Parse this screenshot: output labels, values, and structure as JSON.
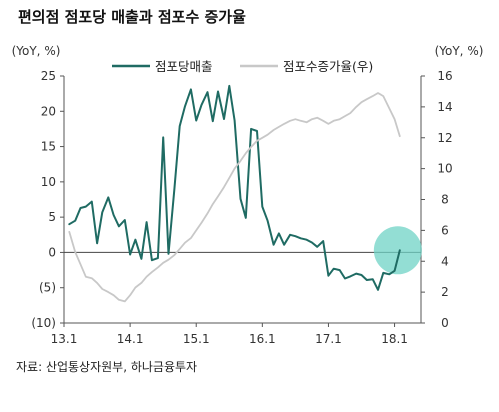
{
  "title": "편의점 점포당 매출과 점포수 증가율",
  "source": "자료: 산업통상자원부, 하나금융투자",
  "colors": {
    "primary": "#1f6b63",
    "secondary": "#c8c8c8",
    "highlight": "#6fd3c6",
    "axis": "#555555",
    "zero_line": "#444444"
  },
  "chart_data": {
    "type": "line",
    "title": "편의점 점포당 매출과 점포수 증가율",
    "x_tick_labels": [
      "13.1",
      "14.1",
      "15.1",
      "16.1",
      "17.1",
      "18.1"
    ],
    "y_left": {
      "unit_label": "(YoY, %)",
      "ylim": [
        -10,
        25
      ],
      "ticks": [
        "(10)",
        "(5)",
        "0",
        "5",
        "10",
        "15",
        "20",
        "25"
      ]
    },
    "y_right": {
      "unit_label": "(YoY, %)",
      "ylim": [
        0,
        16
      ],
      "ticks": [
        "0",
        "2",
        "4",
        "6",
        "8",
        "10",
        "12",
        "14",
        "16"
      ]
    },
    "legend_placement": "top",
    "grid": false,
    "series": [
      {
        "name": "점포당매출",
        "axis": "left",
        "color": "#1f6b63",
        "x": [
          13.08,
          13.17,
          13.25,
          13.33,
          13.42,
          13.5,
          13.58,
          13.67,
          13.75,
          13.83,
          13.92,
          14.0,
          14.08,
          14.17,
          14.25,
          14.33,
          14.42,
          14.5,
          14.58,
          14.67,
          14.75,
          14.83,
          14.92,
          15.0,
          15.08,
          15.17,
          15.25,
          15.33,
          15.42,
          15.5,
          15.58,
          15.67,
          15.75,
          15.83,
          15.92,
          16.0,
          16.08,
          16.17,
          16.25,
          16.33,
          16.42,
          16.5,
          16.58,
          16.67,
          16.75,
          16.83,
          16.92,
          17.0,
          17.08,
          17.17,
          17.25,
          17.33,
          17.42,
          17.5,
          17.58,
          17.67,
          17.75,
          17.83,
          17.92,
          18.0,
          18.08
        ],
        "values": [
          4.0,
          4.5,
          6.3,
          6.5,
          7.2,
          1.3,
          5.7,
          7.8,
          5.3,
          3.7,
          4.6,
          -0.3,
          1.8,
          -0.9,
          4.3,
          -1.1,
          -0.8,
          16.3,
          -0.2,
          9.0,
          17.9,
          20.7,
          23.1,
          18.7,
          20.9,
          22.7,
          18.6,
          22.8,
          18.9,
          23.6,
          18.7,
          7.6,
          4.9,
          17.5,
          17.2,
          6.5,
          4.5,
          1.1,
          2.7,
          1.1,
          2.5,
          2.3,
          2.0,
          1.8,
          1.4,
          0.8,
          1.6,
          -3.3,
          -2.3,
          -2.5,
          -3.7,
          -3.4,
          -3.0,
          -3.2,
          -3.9,
          -3.8,
          -5.3,
          -2.9,
          -3.1,
          -2.6,
          0.3
        ]
      },
      {
        "name": "점포수증가율(우)",
        "axis": "right",
        "color": "#c8c8c8",
        "x": [
          13.08,
          13.17,
          13.25,
          13.33,
          13.42,
          13.5,
          13.58,
          13.67,
          13.75,
          13.83,
          13.92,
          14.0,
          14.08,
          14.17,
          14.25,
          14.33,
          14.42,
          14.5,
          14.58,
          14.67,
          14.75,
          14.83,
          14.92,
          15.0,
          15.08,
          15.17,
          15.25,
          15.33,
          15.42,
          15.5,
          15.58,
          15.67,
          15.75,
          15.83,
          15.92,
          16.0,
          16.08,
          16.17,
          16.25,
          16.33,
          16.42,
          16.5,
          16.58,
          16.67,
          16.75,
          16.83,
          16.92,
          17.0,
          17.08,
          17.17,
          17.25,
          17.33,
          17.42,
          17.5,
          17.58,
          17.67,
          17.75,
          17.83,
          17.92,
          18.0,
          18.08
        ],
        "values": [
          5.9,
          4.6,
          3.8,
          3.0,
          2.9,
          2.6,
          2.2,
          2.0,
          1.8,
          1.5,
          1.4,
          1.8,
          2.3,
          2.6,
          3.0,
          3.3,
          3.6,
          3.9,
          4.1,
          4.4,
          4.8,
          5.2,
          5.5,
          6.0,
          6.5,
          7.1,
          7.7,
          8.2,
          8.8,
          9.4,
          10.0,
          10.5,
          11.0,
          11.4,
          11.8,
          12.0,
          12.2,
          12.5,
          12.7,
          12.9,
          13.1,
          13.2,
          13.1,
          13.0,
          13.2,
          13.3,
          13.1,
          12.9,
          13.1,
          13.2,
          13.4,
          13.6,
          14.0,
          14.3,
          14.5,
          14.7,
          14.9,
          14.7,
          13.9,
          13.2,
          12.1
        ]
      }
    ],
    "annotations": [
      {
        "type": "highlight-circle",
        "x": 18.08,
        "y": 0.3,
        "axis": "left"
      }
    ]
  }
}
